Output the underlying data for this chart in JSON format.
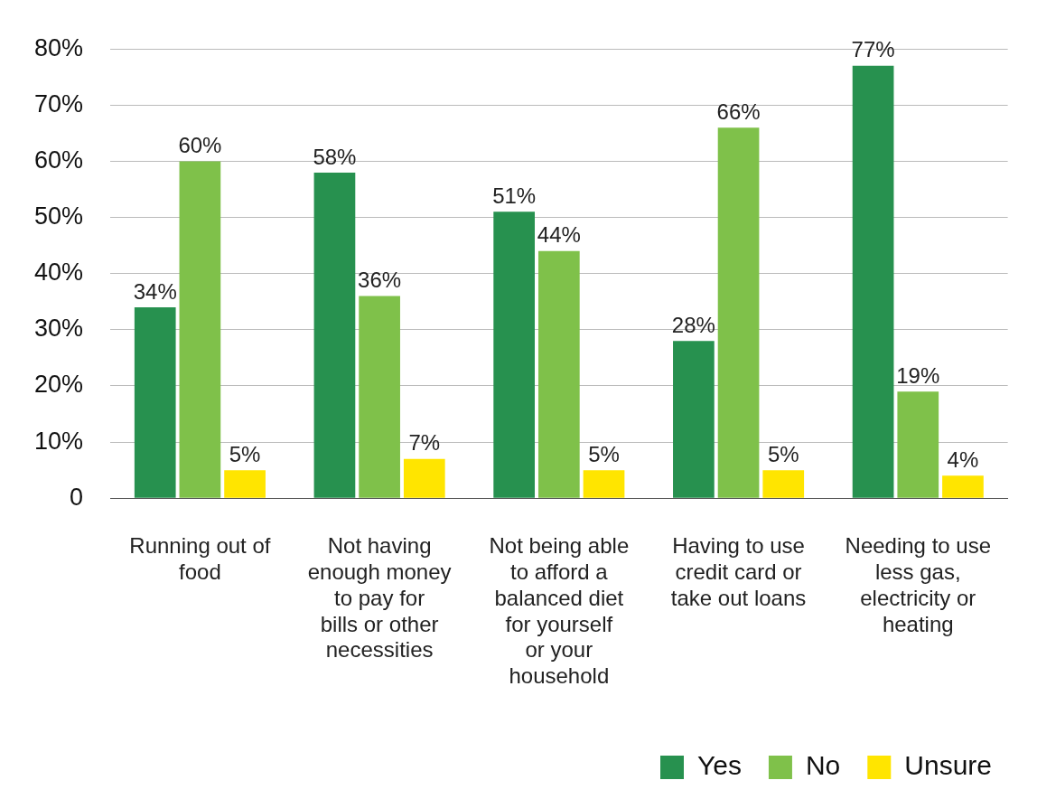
{
  "chart_data": {
    "type": "bar",
    "categories": [
      "Running out of food",
      "Not having enough money to pay for bills or other necessities",
      "Not being able to afford a balanced diet for yourself or your household",
      "Having to use credit card or take out loans",
      "Needing to use less gas, electricity or heating"
    ],
    "series": [
      {
        "name": "Yes",
        "color": "#27914f",
        "values": [
          34,
          58,
          51,
          28,
          77
        ],
        "value_labels": [
          "34%",
          "58%",
          "51%",
          "28%",
          "77%"
        ]
      },
      {
        "name": "No",
        "color": "#7fc14a",
        "values": [
          60,
          36,
          44,
          66,
          19
        ],
        "value_labels": [
          "60%",
          "36%",
          "44%",
          "66%",
          "19%"
        ]
      },
      {
        "name": "Unsure",
        "color": "#ffe500",
        "values": [
          5,
          7,
          5,
          5,
          4
        ],
        "value_labels": [
          "5%",
          "7%",
          "5%",
          "5%",
          "4%"
        ]
      }
    ],
    "ylim": [
      0,
      80
    ],
    "yticks": [
      {
        "value": 0,
        "label": "0"
      },
      {
        "value": 10,
        "label": "10%"
      },
      {
        "value": 20,
        "label": "20%"
      },
      {
        "value": 30,
        "label": "30%"
      },
      {
        "value": 40,
        "label": "40%"
      },
      {
        "value": 50,
        "label": "50%"
      },
      {
        "value": 60,
        "label": "60%"
      },
      {
        "value": 70,
        "label": "70%"
      },
      {
        "value": 80,
        "label": "80%"
      }
    ],
    "grid": "y",
    "legend": "bottom right"
  }
}
